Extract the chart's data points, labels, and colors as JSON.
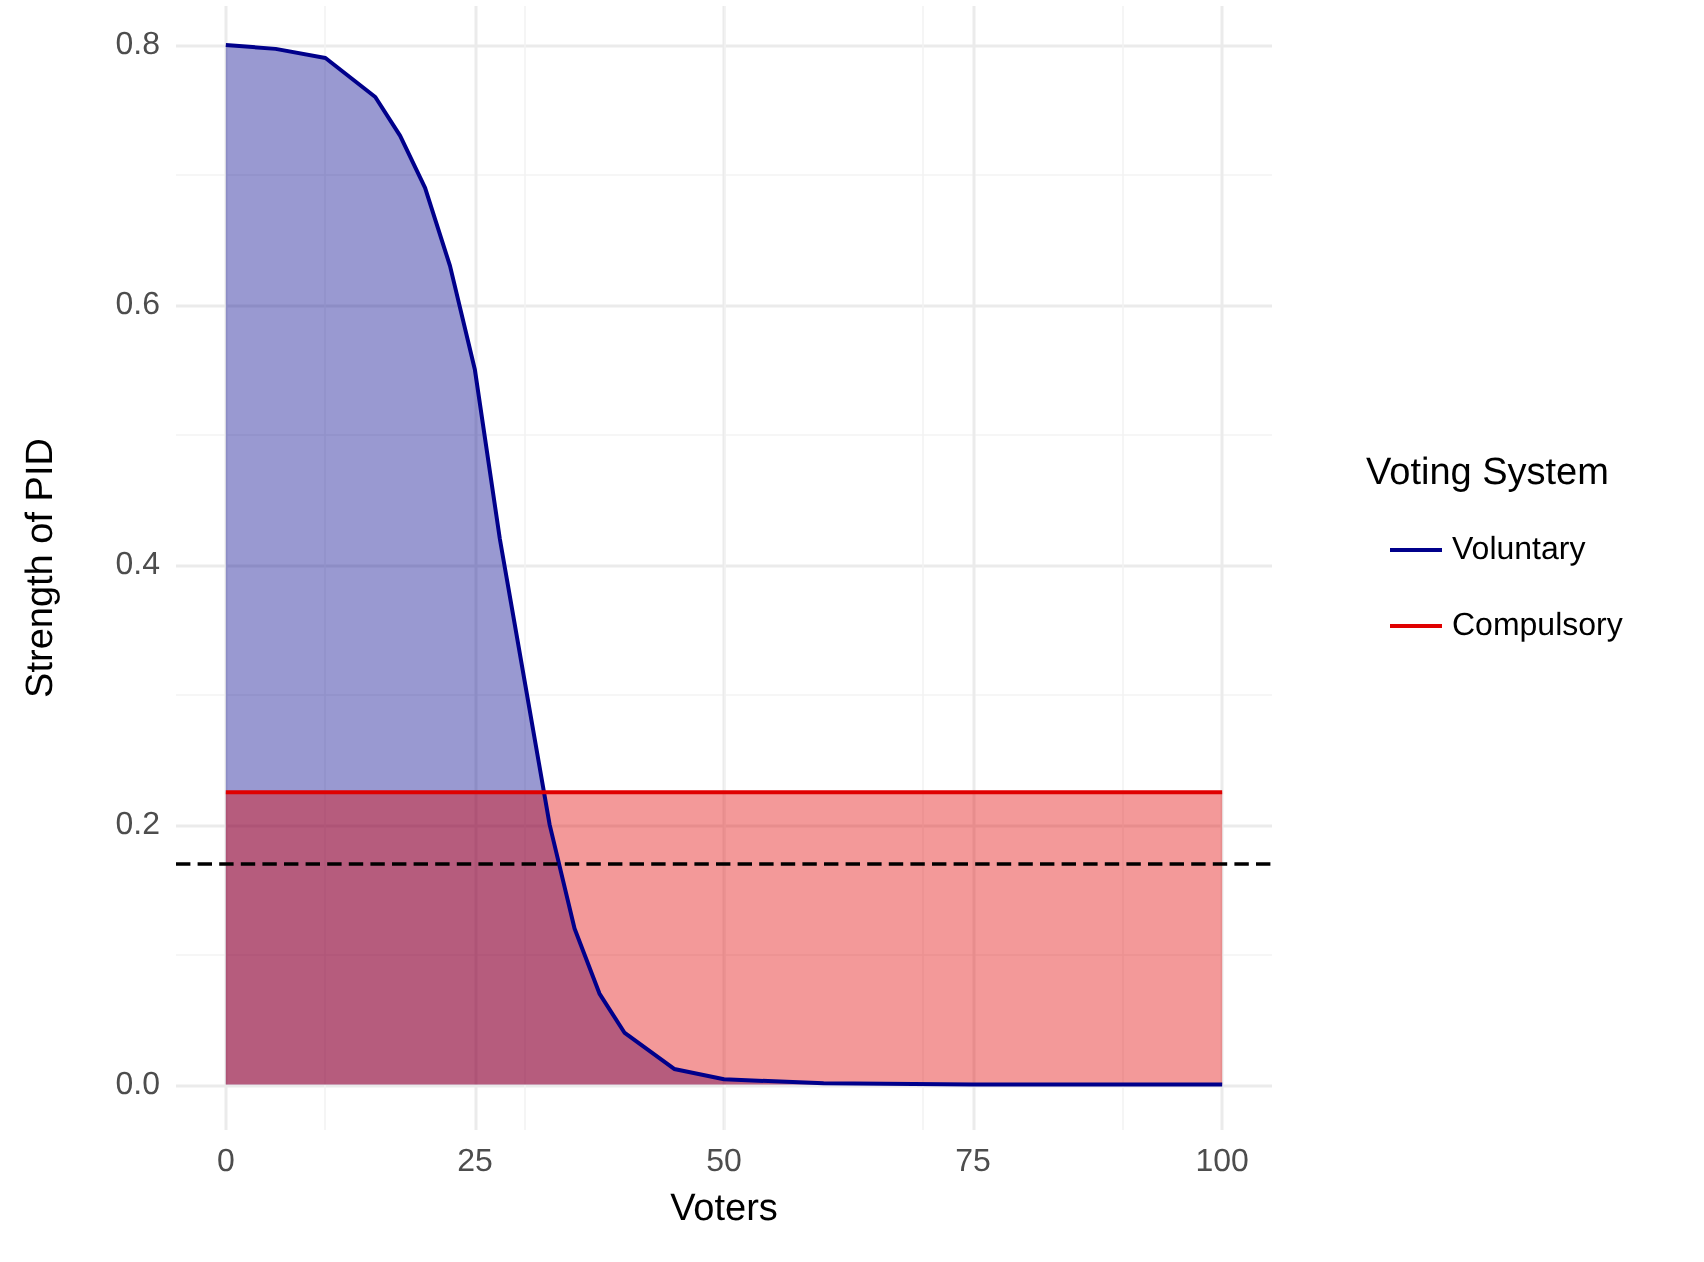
{
  "chart_data": {
    "type": "area",
    "xlabel": "Voters",
    "ylabel": "Strength of PID",
    "legend_title": "Voting System",
    "legend": "right",
    "grid": true,
    "xlim": [
      -5,
      105
    ],
    "ylim": [
      -0.035,
      0.83
    ],
    "xticks": [
      0,
      25,
      50,
      75,
      100
    ],
    "yticks": [
      {
        "value": 0,
        "label": "0.0"
      },
      0.2,
      0.4,
      0.6,
      0.8
    ],
    "series": [
      {
        "name": "Voluntary",
        "color": "#00008b",
        "x": [
          0,
          5,
          10,
          15,
          17.5,
          20,
          22.5,
          25,
          27.5,
          30,
          32.5,
          35,
          37.5,
          40,
          45,
          50,
          60,
          75,
          100
        ],
        "values": [
          0.8,
          0.797,
          0.79,
          0.76,
          0.73,
          0.69,
          0.63,
          0.55,
          0.42,
          0.31,
          0.2,
          0.12,
          0.07,
          0.04,
          0.012,
          0.004,
          0.001,
          0,
          0
        ]
      },
      {
        "name": "Compulsory",
        "color": "#e00000",
        "x": [
          0,
          100
        ],
        "values": [
          0.225,
          0.225
        ]
      }
    ],
    "ref_lines": [
      {
        "axis": "y",
        "value": 0.17,
        "line_style": "dashed",
        "color": "#000000"
      }
    ]
  }
}
